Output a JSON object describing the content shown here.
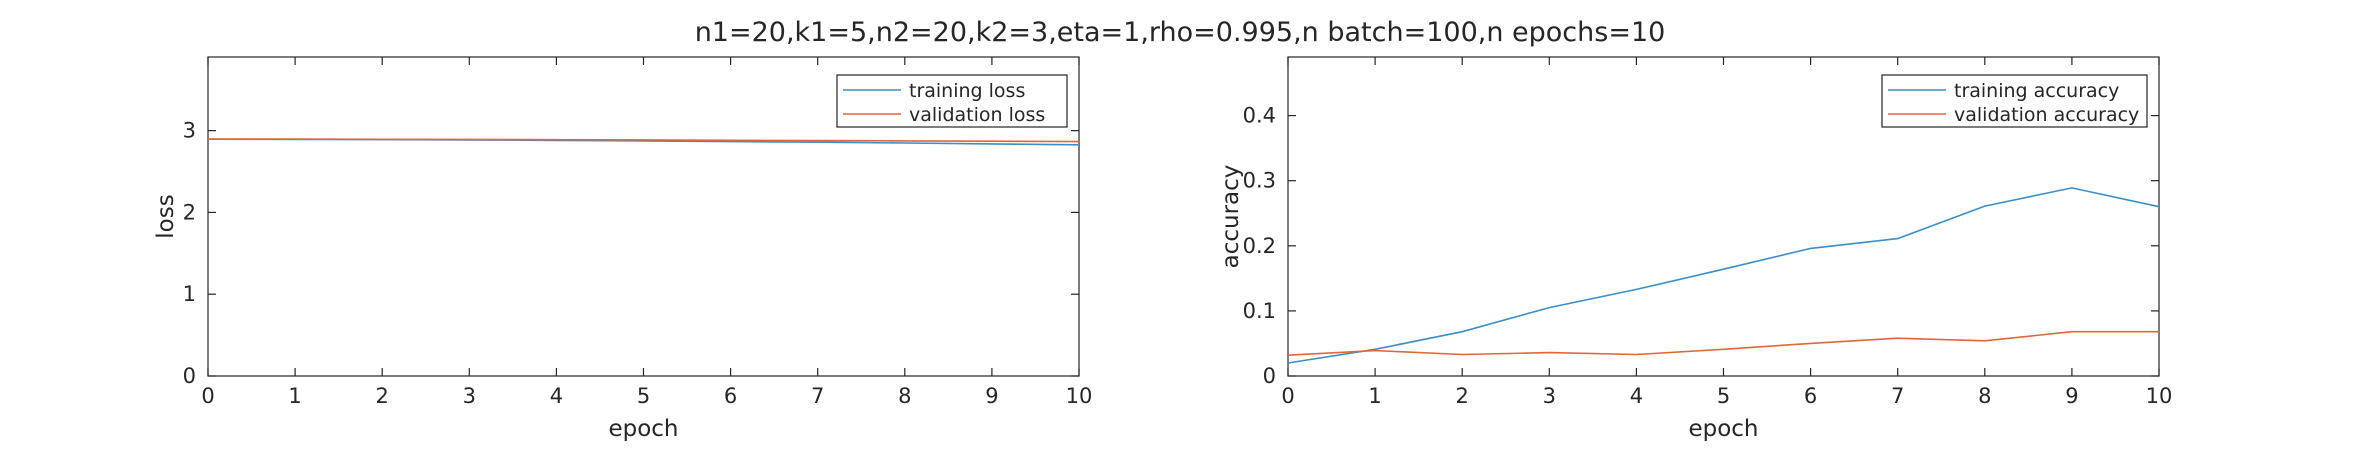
{
  "figure_title": "n1=20,k1=5,n2=20,k2=3,eta=1,rho=0.995,n batch=100,n epochs=10",
  "colors": {
    "series1": "#3a8fc9",
    "series2": "#e0673a",
    "axis": "#262626",
    "background": "#ffffff"
  },
  "chart_data": [
    {
      "type": "line",
      "xlabel": "epoch",
      "ylabel": "loss",
      "xlim": [
        0,
        10
      ],
      "ylim": [
        0,
        3.9
      ],
      "xticks": [
        "0",
        "1",
        "2",
        "3",
        "4",
        "5",
        "6",
        "7",
        "8",
        "9",
        "10"
      ],
      "yticks": [
        "0",
        "1",
        "2",
        "3"
      ],
      "grid": false,
      "legend": "top-right",
      "x": [
        0,
        1,
        2,
        3,
        4,
        5,
        6,
        7,
        8,
        9,
        10
      ],
      "series": [
        {
          "name": "training loss",
          "values": [
            2.895,
            2.893,
            2.89,
            2.886,
            2.88,
            2.874,
            2.866,
            2.858,
            2.849,
            2.838,
            2.826
          ]
        },
        {
          "name": "validation loss",
          "values": [
            2.897,
            2.896,
            2.894,
            2.892,
            2.889,
            2.886,
            2.882,
            2.878,
            2.874,
            2.87,
            2.866
          ]
        }
      ]
    },
    {
      "type": "line",
      "xlabel": "epoch",
      "ylabel": "accuracy",
      "xlim": [
        0,
        10
      ],
      "ylim": [
        0,
        0.49
      ],
      "xticks": [
        "0",
        "1",
        "2",
        "3",
        "4",
        "5",
        "6",
        "7",
        "8",
        "9",
        "10"
      ],
      "yticks": [
        "0",
        "0.1",
        "0.2",
        "0.3",
        "0.4"
      ],
      "grid": false,
      "legend": "top-right",
      "x": [
        0,
        1,
        2,
        3,
        4,
        5,
        6,
        7,
        8,
        9,
        10
      ],
      "series": [
        {
          "name": "training accuracy",
          "values": [
            0.02,
            0.041,
            0.068,
            0.105,
            0.133,
            0.164,
            0.196,
            0.211,
            0.261,
            0.289,
            0.26
          ]
        },
        {
          "name": "validation accuracy",
          "values": [
            0.032,
            0.039,
            0.033,
            0.036,
            0.033,
            0.041,
            0.05,
            0.058,
            0.054,
            0.068,
            0.068
          ]
        }
      ]
    }
  ]
}
